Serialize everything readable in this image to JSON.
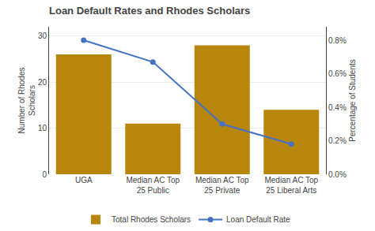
{
  "chart_data": {
    "type": "bar",
    "title": "Loan Default Rates and Rhodes Scholars",
    "categories": [
      "UGA",
      "Median AC Top\n25 Public",
      "Median AC Top\n25 Private",
      "Median AC Top\n25 Liberal Arts"
    ],
    "series": [
      {
        "name": "Total Rhodes Scholars",
        "type": "bar",
        "color": "#B8860B",
        "values": [
          26,
          11,
          28,
          14
        ]
      },
      {
        "name": "Loan Default Rate",
        "type": "line",
        "color": "#4472C4",
        "marker": "circle",
        "axis": "y2",
        "values": [
          0.008,
          0.0067,
          0.003,
          0.0018
        ]
      }
    ],
    "ylabel": "Number of Rhodes\nScholars",
    "y2label": "Percentage of Students",
    "ylim": [
      0,
      32
    ],
    "yticks": [
      0,
      10,
      20,
      30
    ],
    "y2lim": [
      0.0,
      0.0088
    ],
    "y2ticks": [
      {
        "value": 0.0,
        "label": "0.0%"
      },
      {
        "value": 0.002,
        "label": "0.2%"
      },
      {
        "value": 0.004,
        "label": "0.4%"
      },
      {
        "value": 0.006,
        "label": "0.6%"
      },
      {
        "value": 0.008,
        "label": "0.8%"
      }
    ],
    "grid": true,
    "legend": "bottom"
  }
}
